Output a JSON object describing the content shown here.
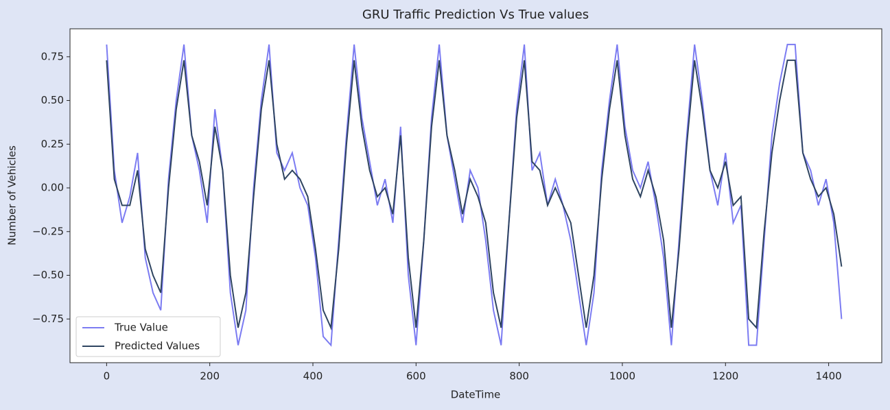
{
  "chart_data": {
    "type": "line",
    "title": "GRU Traffic Prediction Vs True values",
    "x_label": "DateTime",
    "y_label": "Number of Vehicles",
    "x": [
      0,
      15,
      30,
      45,
      60,
      75,
      90,
      105,
      120,
      135,
      150,
      165,
      180,
      195,
      210,
      225,
      240,
      255,
      270,
      285,
      300,
      315,
      330,
      345,
      360,
      375,
      390,
      405,
      420,
      435,
      450,
      465,
      480,
      495,
      510,
      525,
      540,
      555,
      570,
      585,
      600,
      615,
      630,
      645,
      660,
      675,
      690,
      705,
      720,
      735,
      750,
      765,
      780,
      795,
      810,
      825,
      840,
      855,
      870,
      885,
      900,
      915,
      930,
      945,
      960,
      975,
      990,
      1005,
      1020,
      1035,
      1050,
      1065,
      1080,
      1095,
      1110,
      1125,
      1140,
      1155,
      1170,
      1185,
      1200,
      1215,
      1230,
      1245,
      1260,
      1275,
      1290,
      1305,
      1320,
      1335,
      1350,
      1365,
      1380,
      1395,
      1410,
      1425
    ],
    "series": [
      {
        "name": "True Value",
        "color": "#7b7bf2",
        "values": [
          0.82,
          0.1,
          -0.2,
          -0.05,
          0.2,
          -0.4,
          -0.6,
          -0.7,
          0.05,
          0.5,
          0.82,
          0.3,
          0.1,
          -0.2,
          0.45,
          0.1,
          -0.6,
          -0.9,
          -0.7,
          0.0,
          0.5,
          0.82,
          0.2,
          0.1,
          0.2,
          0.0,
          -0.1,
          -0.4,
          -0.85,
          -0.9,
          -0.3,
          0.3,
          0.82,
          0.4,
          0.15,
          -0.1,
          0.05,
          -0.2,
          0.35,
          -0.5,
          -0.9,
          -0.3,
          0.4,
          0.82,
          0.3,
          0.05,
          -0.2,
          0.1,
          0.0,
          -0.3,
          -0.7,
          -0.9,
          -0.2,
          0.45,
          0.82,
          0.1,
          0.2,
          -0.1,
          0.05,
          -0.1,
          -0.3,
          -0.6,
          -0.9,
          -0.6,
          0.1,
          0.5,
          0.82,
          0.35,
          0.1,
          0.0,
          0.15,
          -0.1,
          -0.4,
          -0.9,
          -0.3,
          0.3,
          0.82,
          0.5,
          0.1,
          -0.1,
          0.2,
          -0.2,
          -0.1,
          -0.9,
          -0.9,
          -0.3,
          0.3,
          0.6,
          0.82,
          0.82,
          0.2,
          0.1,
          -0.1,
          0.05,
          -0.2,
          -0.75
        ]
      },
      {
        "name": "Predicted Values",
        "color": "#2e4460",
        "values": [
          0.73,
          0.05,
          -0.1,
          -0.1,
          0.1,
          -0.35,
          -0.5,
          -0.6,
          0.0,
          0.45,
          0.73,
          0.3,
          0.15,
          -0.1,
          0.35,
          0.1,
          -0.5,
          -0.8,
          -0.6,
          -0.05,
          0.45,
          0.73,
          0.25,
          0.05,
          0.1,
          0.05,
          -0.05,
          -0.35,
          -0.7,
          -0.8,
          -0.35,
          0.25,
          0.73,
          0.35,
          0.1,
          -0.05,
          0.0,
          -0.15,
          0.3,
          -0.4,
          -0.8,
          -0.3,
          0.35,
          0.73,
          0.3,
          0.1,
          -0.15,
          0.05,
          -0.05,
          -0.2,
          -0.6,
          -0.8,
          -0.2,
          0.4,
          0.73,
          0.15,
          0.1,
          -0.1,
          0.0,
          -0.1,
          -0.2,
          -0.5,
          -0.8,
          -0.5,
          0.05,
          0.45,
          0.73,
          0.3,
          0.05,
          -0.05,
          0.1,
          -0.05,
          -0.3,
          -0.8,
          -0.35,
          0.25,
          0.73,
          0.45,
          0.1,
          0.0,
          0.15,
          -0.1,
          -0.05,
          -0.75,
          -0.8,
          -0.25,
          0.2,
          0.5,
          0.73,
          0.73,
          0.2,
          0.05,
          -0.05,
          0.0,
          -0.15,
          -0.45
        ]
      }
    ],
    "xlim": [
      -71,
      1503
    ],
    "ylim": [
      -1.0,
      0.91
    ],
    "xticks": [
      0,
      200,
      400,
      600,
      800,
      1000,
      1200,
      1400
    ],
    "yticks": [
      {
        "value": -0.75,
        "label": "−0.75"
      },
      {
        "value": -0.5,
        "label": "−0.50"
      },
      {
        "value": -0.25,
        "label": "−0.25"
      },
      {
        "value": 0,
        "label": "0.00"
      },
      {
        "value": 0.25,
        "label": "0.25"
      },
      {
        "value": 0.5,
        "label": "0.50"
      },
      {
        "value": 0.75,
        "label": "0.75"
      }
    ],
    "legend": "lower left"
  }
}
